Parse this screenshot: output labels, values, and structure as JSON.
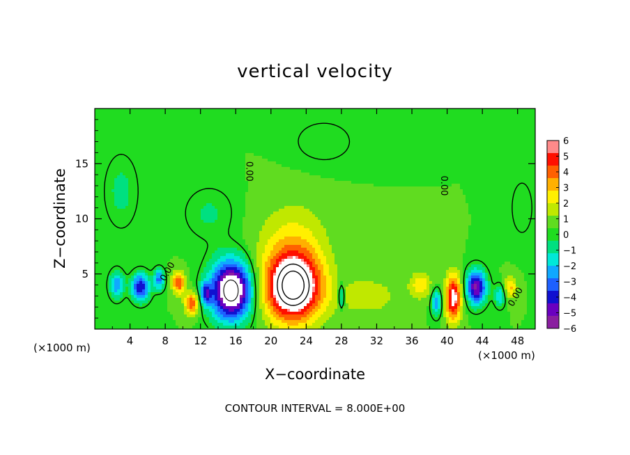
{
  "chart_data": {
    "type": "heatmap",
    "title": "vertical velocity",
    "xlabel": "X−coordinate",
    "ylabel": "Z−coordinate",
    "x_unit_label": "(×1000 m)",
    "footer": "CONTOUR INTERVAL = 8.000E+00",
    "xlim": [
      0,
      50
    ],
    "ylim": [
      0,
      20
    ],
    "x_ticks": [
      4,
      8,
      12,
      16,
      20,
      24,
      28,
      32,
      36,
      40,
      44,
      48
    ],
    "y_ticks": [
      5,
      10,
      15
    ],
    "colorbar": {
      "ticks": [
        6,
        5,
        4,
        3,
        2,
        1,
        0,
        -1,
        -2,
        -3,
        -4,
        -5,
        -6
      ],
      "tick_labels": [
        "6",
        "5",
        "4",
        "3",
        "2",
        "1",
        "0",
        "−1",
        "−2",
        "−3",
        "−4",
        "−5",
        "−6"
      ],
      "range": [
        -6,
        6
      ],
      "colors": [
        "#8a1ea0",
        "#6a00c0",
        "#1010d0",
        "#1e60ff",
        "#10a8ff",
        "#00e8d8",
        "#00e080",
        "#20dc20",
        "#60dc20",
        "#c0e800",
        "#fff000",
        "#ffb000",
        "#ff6000",
        "#ff1000",
        "#ff8a8a"
      ]
    },
    "background_value": 0.4,
    "features": [
      {
        "x": 15.5,
        "z": 3.5,
        "w": -8.0,
        "rx": 2.3,
        "rz": 2.6
      },
      {
        "x": 22.5,
        "z": 3.8,
        "w": 8.0,
        "rx": 3.2,
        "rz": 3.1
      },
      {
        "x": 40.7,
        "z": 2.8,
        "w": 5.6,
        "rx": 0.9,
        "rz": 2.1
      },
      {
        "x": 43.3,
        "z": 3.8,
        "w": -5.8,
        "rx": 1.1,
        "rz": 1.5
      },
      {
        "x": 9.5,
        "z": 4.2,
        "w": 4.2,
        "rx": 0.7,
        "rz": 1.0
      },
      {
        "x": 11.0,
        "z": 2.3,
        "w": 4.0,
        "rx": 0.8,
        "rz": 1.0
      },
      {
        "x": 5.2,
        "z": 3.8,
        "w": -4.8,
        "rx": 1.0,
        "rz": 1.2
      },
      {
        "x": 7.3,
        "z": 4.5,
        "w": -3.5,
        "rx": 0.6,
        "rz": 0.9
      },
      {
        "x": 2.5,
        "z": 4.0,
        "w": -3.0,
        "rx": 0.8,
        "rz": 1.2
      },
      {
        "x": 12.6,
        "z": 3.2,
        "w": -3.5,
        "rx": 0.6,
        "rz": 1.0
      },
      {
        "x": 28.0,
        "z": 3.0,
        "w": -2.5,
        "rx": 0.4,
        "rz": 1.3
      },
      {
        "x": 38.8,
        "z": 2.4,
        "w": -3.0,
        "rx": 0.6,
        "rz": 1.2
      },
      {
        "x": 47.2,
        "z": 3.8,
        "w": 2.5,
        "rx": 0.7,
        "rz": 1.0
      },
      {
        "x": 46.0,
        "z": 3.0,
        "w": -2.2,
        "rx": 0.6,
        "rz": 1.0
      },
      {
        "x": 37.0,
        "z": 4.0,
        "w": 2.2,
        "rx": 1.2,
        "rz": 1.2
      },
      {
        "x": 22.5,
        "z": 8.2,
        "w": 1.6,
        "rx": 4.0,
        "rz": 3.5
      },
      {
        "x": 3.0,
        "z": 12.5,
        "w": -1.0,
        "rx": 2.0,
        "rz": 3.5
      },
      {
        "x": 13.0,
        "z": 10.5,
        "w": -0.9,
        "rx": 3.0,
        "rz": 2.5
      },
      {
        "x": 31.0,
        "z": 3.0,
        "w": 1.2,
        "rx": 4.0,
        "rz": 2.0
      },
      {
        "x": 26.0,
        "z": 17.0,
        "w": -0.8,
        "rx": 3.5,
        "rz": 2.0
      },
      {
        "x": 48.5,
        "z": 11.0,
        "w": -0.7,
        "rx": 1.5,
        "rz": 3.0
      }
    ],
    "contour_level_labels": [
      {
        "text": "0.00",
        "x": 17.5,
        "z": 14.3,
        "angle": 90
      },
      {
        "text": "0.00",
        "x": 39.6,
        "z": 13.0,
        "angle": 90
      },
      {
        "text": "0.00",
        "x": 8.3,
        "z": 5.2,
        "angle": -60
      },
      {
        "text": "0.00",
        "x": 47.8,
        "z": 2.9,
        "angle": -60
      }
    ]
  }
}
